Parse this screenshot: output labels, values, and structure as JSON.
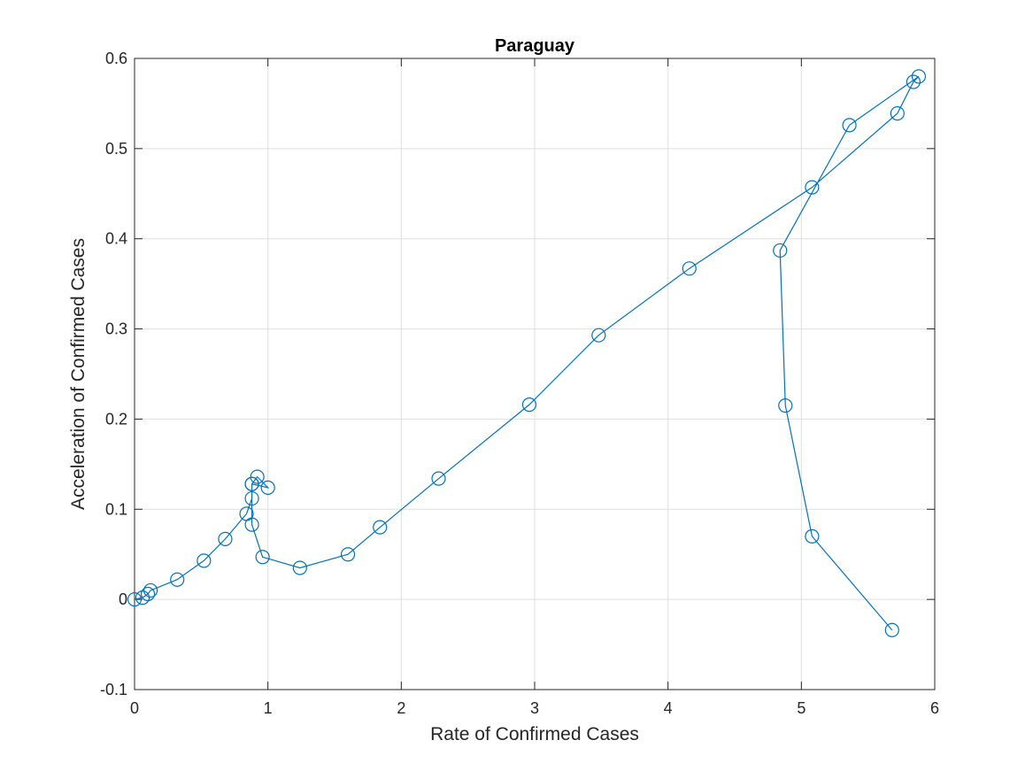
{
  "chart_data": {
    "type": "line",
    "title": "Paraguay",
    "xlabel": "Rate of Confirmed Cases",
    "ylabel": "Acceleration of Confirmed Cases",
    "xlim": [
      0,
      6
    ],
    "ylim": [
      -0.1,
      0.6
    ],
    "xticks": [
      0,
      1,
      2,
      3,
      4,
      5,
      6
    ],
    "yticks": [
      -0.1,
      0,
      0.1,
      0.2,
      0.3,
      0.4,
      0.5,
      0.6
    ],
    "xtick_labels": [
      "0",
      "1",
      "2",
      "3",
      "4",
      "5",
      "6"
    ],
    "ytick_labels": [
      "-0.1",
      "0",
      "0.1",
      "0.2",
      "0.3",
      "0.4",
      "0.5",
      "0.6"
    ],
    "grid": true,
    "marker": "circle",
    "line_color": "#0072bd",
    "series": [
      {
        "x": [
          0.0,
          0.06,
          0.1,
          0.12,
          0.32,
          0.52,
          0.68,
          0.84,
          0.88,
          0.88,
          0.92,
          1.0,
          0.88,
          0.88,
          0.96,
          1.24,
          1.6,
          1.84,
          2.28,
          2.96,
          3.48,
          4.16,
          5.08,
          5.72,
          5.84,
          5.88,
          5.36,
          4.84,
          4.88,
          5.08,
          5.68
        ],
        "y": [
          0.0,
          0.002,
          0.006,
          0.01,
          0.022,
          0.043,
          0.067,
          0.095,
          0.112,
          0.128,
          0.136,
          0.124,
          0.128,
          0.083,
          0.047,
          0.035,
          0.05,
          0.08,
          0.134,
          0.216,
          0.293,
          0.367,
          0.457,
          0.539,
          0.574,
          0.58,
          0.526,
          0.387,
          0.215,
          0.07,
          -0.034
        ]
      }
    ]
  }
}
